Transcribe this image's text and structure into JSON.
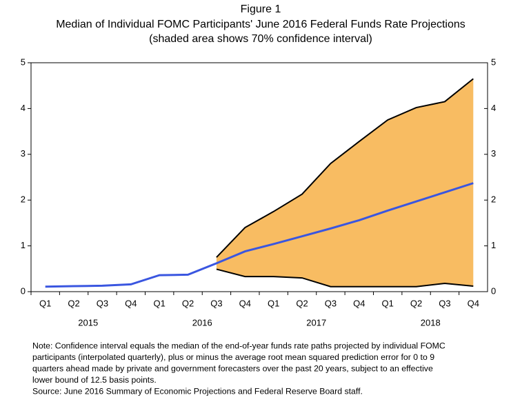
{
  "chart_data": {
    "type": "line",
    "title": "Figure 1",
    "subtitle": "Median of Individual FOMC Participants' June 2016 Federal Funds Rate Projections",
    "subtitle2": "(shaded area shows 70% confidence interval)",
    "categories": [
      "Q1",
      "Q2",
      "Q3",
      "Q4",
      "Q1",
      "Q2",
      "Q3",
      "Q4",
      "Q1",
      "Q2",
      "Q3",
      "Q4",
      "Q1",
      "Q2",
      "Q3",
      "Q4"
    ],
    "years": [
      "2015",
      "2016",
      "2017",
      "2018"
    ],
    "series": [
      {
        "color": "#3a56e0",
        "values": [
          0.11,
          0.12,
          0.13,
          0.16,
          0.36,
          0.37,
          0.62,
          0.88,
          1.04,
          1.21,
          1.38,
          1.56,
          1.77,
          1.97,
          2.17,
          2.37
        ]
      }
    ],
    "band": {
      "fill": "#f8bc62",
      "line_color": "#000000",
      "upper": [
        null,
        null,
        null,
        null,
        null,
        null,
        0.75,
        1.4,
        1.75,
        2.13,
        2.8,
        3.28,
        3.75,
        4.02,
        4.15,
        4.65
      ],
      "lower": [
        null,
        null,
        null,
        null,
        null,
        null,
        0.49,
        0.33,
        0.33,
        0.3,
        0.11,
        0.11,
        0.11,
        0.11,
        0.18,
        0.12
      ]
    },
    "ylim": [
      0,
      5
    ],
    "yticks": [
      0,
      1,
      2,
      3,
      4,
      5
    ],
    "notes": [
      "Note:  Confidence interval equals the median of the end-of-year funds rate paths projected by individual FOMC",
      "participants (interpolated quarterly), plus or minus the average root mean squared prediction error for 0 to 9",
      "quarters ahead made by private and government forecasters over the past 20 years, subject to an effective",
      "lower bound of 12.5 basis points.",
      "Source:  June 2016 Summary of Economic Projections and Federal Reserve Board staff."
    ]
  }
}
